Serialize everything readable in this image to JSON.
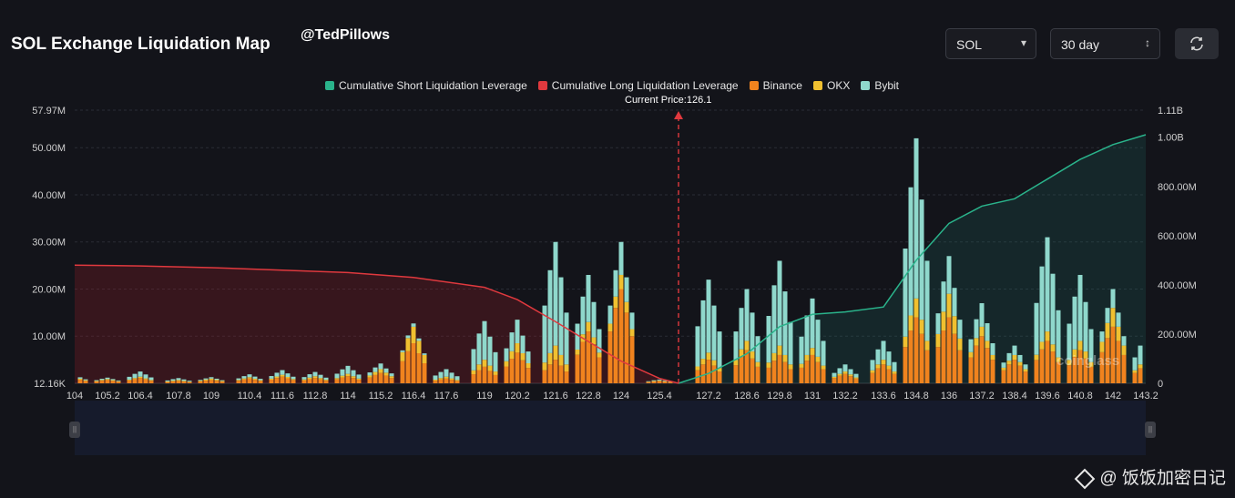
{
  "header": {
    "title": "SOL Exchange Liquidation Map",
    "handle": "@TedPillows",
    "coin": "SOL",
    "range": "30 day"
  },
  "legend": {
    "short": "Cumulative Short Liquidation Leverage",
    "long": "Cumulative Long Liquidation Leverage",
    "binance": "Binance",
    "okx": "OKX",
    "bybit": "Bybit"
  },
  "colors": {
    "short": "#2ab38b",
    "long": "#e0393e",
    "binance": "#f0831e",
    "okx": "#f0c030",
    "bybit": "#8fd8cc",
    "background": "#13141a"
  },
  "watermark": "coinglass",
  "corner_mark": "@ 饭饭加密日记",
  "chart_data": {
    "type": "bar",
    "current_price_label": "Current Price:126.1",
    "current_price": 126.1,
    "x_ticks": [
      "104",
      "105.2",
      "106.4",
      "107.8",
      "109",
      "110.4",
      "111.6",
      "112.8",
      "114",
      "115.2",
      "116.4",
      "117.6",
      "119",
      "120.2",
      "121.6",
      "122.8",
      "124",
      "125.4",
      "127.2",
      "128.6",
      "129.8",
      "131",
      "132.2",
      "133.6",
      "134.8",
      "136",
      "137.2",
      "138.4",
      "139.6",
      "140.8",
      "142",
      "143.2"
    ],
    "y_left_ticks": [
      "12.16K",
      "10.00M",
      "20.00M",
      "30.00M",
      "40.00M",
      "50.00M",
      "57.97M"
    ],
    "y_right_ticks": [
      "0",
      "200.00M",
      "400.00M",
      "600.00M",
      "800.00M",
      "1.00B",
      "1.11B"
    ],
    "ylim_left": [
      0,
      57.97
    ],
    "ylim_right": [
      0,
      1.11
    ],
    "grid": true,
    "legend_position": "top-center",
    "cumulative_long_leverage_B": {
      "x": [
        104,
        106.4,
        109,
        111.6,
        114,
        116.4,
        119,
        120.2,
        121.6,
        122.8,
        124,
        125.4,
        126.1
      ],
      "y": [
        0.48,
        0.477,
        0.47,
        0.46,
        0.45,
        0.43,
        0.39,
        0.34,
        0.25,
        0.17,
        0.09,
        0.02,
        0.0
      ]
    },
    "cumulative_short_leverage_B": {
      "x": [
        126.1,
        127.2,
        128.6,
        129.8,
        131,
        132.2,
        133.6,
        134.8,
        136,
        137.2,
        138.4,
        139.6,
        140.8,
        142,
        143.2
      ],
      "y": [
        0.0,
        0.04,
        0.12,
        0.23,
        0.28,
        0.29,
        0.31,
        0.5,
        0.65,
        0.72,
        0.75,
        0.83,
        0.91,
        0.97,
        1.01
      ]
    },
    "bars_M": [
      {
        "x": 104,
        "binance": 1.0,
        "okx": 0.3,
        "bybit": 0.4
      },
      {
        "x": 105.2,
        "binance": 0.7,
        "okx": 0.2,
        "bybit": 0.3
      },
      {
        "x": 106.4,
        "binance": 1.1,
        "okx": 0.3,
        "bybit": 1.1
      },
      {
        "x": 107.8,
        "binance": 0.5,
        "okx": 0.2,
        "bybit": 0.4
      },
      {
        "x": 109,
        "binance": 0.7,
        "okx": 0.3,
        "bybit": 0.3
      },
      {
        "x": 110.4,
        "binance": 1.0,
        "okx": 0.3,
        "bybit": 0.6
      },
      {
        "x": 111.6,
        "binance": 1.4,
        "okx": 0.4,
        "bybit": 1.0
      },
      {
        "x": 112.8,
        "binance": 1.1,
        "okx": 0.4,
        "bybit": 0.9
      },
      {
        "x": 114,
        "binance": 1.5,
        "okx": 0.5,
        "bybit": 1.7
      },
      {
        "x": 115.2,
        "binance": 2.2,
        "okx": 0.8,
        "bybit": 1.2
      },
      {
        "x": 116.4,
        "binance": 8.5,
        "okx": 3.5,
        "bybit": 0.7
      },
      {
        "x": 117.6,
        "binance": 1.0,
        "okx": 0.4,
        "bybit": 1.6
      },
      {
        "x": 119,
        "binance": 3.5,
        "okx": 1.5,
        "bybit": 8.2
      },
      {
        "x": 120.2,
        "binance": 6.5,
        "okx": 2.0,
        "bybit": 5.0
      },
      {
        "x": 121.6,
        "binance": 5.0,
        "okx": 3.0,
        "bybit": 22.0
      },
      {
        "x": 122.8,
        "binance": 11.0,
        "okx": 2.0,
        "bybit": 10.0
      },
      {
        "x": 124,
        "binance": 20.0,
        "okx": 3.0,
        "bybit": 7.0
      },
      {
        "x": 125.4,
        "binance": 0.5,
        "okx": 0.1,
        "bybit": 0.2
      },
      {
        "x": 127.2,
        "binance": 5.0,
        "okx": 1.5,
        "bybit": 15.5
      },
      {
        "x": 128.6,
        "binance": 7.0,
        "okx": 2.0,
        "bybit": 11.0
      },
      {
        "x": 129.8,
        "binance": 6.0,
        "okx": 2.0,
        "bybit": 18.0
      },
      {
        "x": 131,
        "binance": 6.0,
        "okx": 1.5,
        "bybit": 10.5
      },
      {
        "x": 132.2,
        "binance": 2.0,
        "okx": 0.5,
        "bybit": 1.5
      },
      {
        "x": 133.6,
        "binance": 4.0,
        "okx": 1.0,
        "bybit": 4.0
      },
      {
        "x": 134.8,
        "binance": 14.0,
        "okx": 4.0,
        "bybit": 34.0
      },
      {
        "x": 136,
        "binance": 14.0,
        "okx": 5.0,
        "bybit": 8.0
      },
      {
        "x": 137.2,
        "binance": 10.0,
        "okx": 2.0,
        "bybit": 5.0
      },
      {
        "x": 138.4,
        "binance": 5.0,
        "okx": 1.0,
        "bybit": 2.0
      },
      {
        "x": 139.6,
        "binance": 9.0,
        "okx": 2.0,
        "bybit": 20.0
      },
      {
        "x": 140.8,
        "binance": 7.0,
        "okx": 2.0,
        "bybit": 14.0
      },
      {
        "x": 142,
        "binance": 12.0,
        "okx": 4.0,
        "bybit": 4.0
      },
      {
        "x": 143.2,
        "binance": 4.0,
        "okx": 1.0,
        "bybit": 5.0
      }
    ]
  }
}
